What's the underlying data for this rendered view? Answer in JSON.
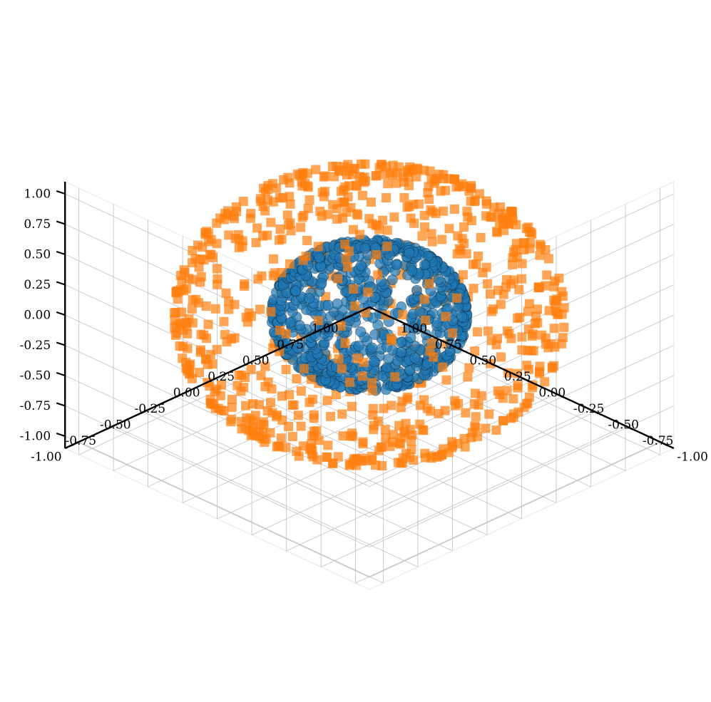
{
  "chart_data": {
    "type": "scatter",
    "projection": "3d",
    "title": "",
    "xlabel": "",
    "ylabel": "",
    "zlabel": "",
    "xlim": [
      -1.1,
      1.1
    ],
    "ylim": [
      -1.1,
      1.1
    ],
    "zlim": [
      -1.1,
      1.1
    ],
    "x_ticks": [
      "-1.00",
      "-0.75",
      "-0.50",
      "-0.25",
      "0.00",
      "0.25",
      "0.50",
      "0.75",
      "1.00"
    ],
    "y_ticks": [
      "-1.00",
      "-0.75",
      "-0.50",
      "-0.25",
      "0.00",
      "0.25",
      "0.50",
      "0.75",
      "1.00"
    ],
    "z_ticks": [
      "-1.00",
      "-0.75",
      "-0.50",
      "-0.25",
      "0.00",
      "0.25",
      "0.50",
      "0.75",
      "1.00"
    ],
    "grid": true,
    "legend": "none",
    "series": [
      {
        "marker": "circle",
        "color": "#1f77b4",
        "edgecolor": "#000000",
        "alpha": 0.7,
        "shape": "sphere",
        "center": [
          0,
          0,
          0
        ],
        "radius": 0.5,
        "count": 800
      },
      {
        "marker": "square",
        "color": "#ff7f0e",
        "alpha": 0.7,
        "shape": "sphere",
        "center": [
          0,
          0,
          0
        ],
        "radius": 1.0,
        "count": 800
      }
    ]
  }
}
